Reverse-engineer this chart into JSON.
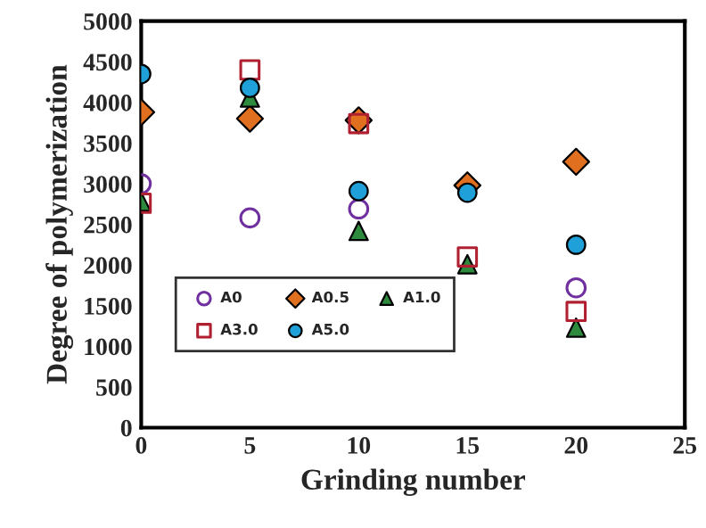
{
  "chart_data": {
    "type": "scatter",
    "xlabel": "Grinding number",
    "ylabel": "Degree of polymerization",
    "x": [
      0,
      5,
      10,
      15,
      20
    ],
    "series": [
      {
        "name": "A0",
        "color": "#7030a0",
        "marker": "circle",
        "values": [
          3000,
          2580,
          2690,
          null,
          1720
        ]
      },
      {
        "name": "A0.5",
        "color": "#e07020",
        "marker": "diamond",
        "values": [
          3880,
          3800,
          3780,
          2980,
          3270
        ]
      },
      {
        "name": "A1.0",
        "color": "#2e8b3e",
        "marker": "triangle",
        "values": [
          2780,
          4060,
          2420,
          2010,
          1230
        ]
      },
      {
        "name": "A3.0",
        "color": "#b02030",
        "marker": "square",
        "values": [
          2760,
          4400,
          3740,
          2100,
          1430
        ]
      },
      {
        "name": "A5.0",
        "color": "#20a0d8",
        "marker": "circle",
        "values": [
          4350,
          4180,
          2910,
          2890,
          2250
        ]
      }
    ],
    "xlim": [
      0,
      25
    ],
    "xticks": [
      0,
      5,
      10,
      15,
      20,
      25
    ],
    "ylim": [
      0,
      5000
    ],
    "yticks": [
      0,
      500,
      1000,
      1500,
      2000,
      2500,
      3000,
      3500,
      4000,
      4500,
      5000
    ],
    "grid": false,
    "legend": "bottom left"
  }
}
